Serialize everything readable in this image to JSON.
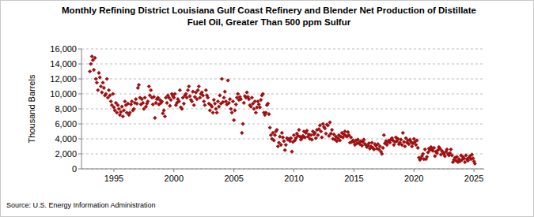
{
  "chart_data": {
    "type": "scatter",
    "title": "Monthly Refining District Louisiana Gulf Coast Refinery and Blender Net Production of Distillate\nFuel Oil, Greater Than 500 ppm Sulfur",
    "y_label": "Thousand Barrels",
    "source": "Source: U.S. Energy Information Administration",
    "color": "#a01010",
    "marker": "diamond",
    "grid": true,
    "xlim": [
      1992.3,
      2025.85
    ],
    "xticks": [
      1995,
      2000,
      2005,
      2010,
      2015,
      2020,
      2025
    ],
    "ylim": [
      0,
      16000
    ],
    "yticks": [
      0,
      {
        "value": 2000,
        "label": "2,000"
      },
      {
        "value": 4000,
        "label": "4,000"
      },
      {
        "value": 6000,
        "label": "6,000"
      },
      {
        "value": 8000,
        "label": "8,000"
      },
      {
        "value": 10000,
        "label": "10,000"
      },
      {
        "value": 12000,
        "label": "12,000"
      },
      {
        "value": 14000,
        "label": "14,000"
      },
      {
        "value": 16000,
        "label": "16,000"
      }
    ],
    "x": [
      1993,
      1993.08,
      1993.17,
      1993.25,
      1993.33,
      1993.42,
      1993.5,
      1993.58,
      1993.67,
      1993.75,
      1993.83,
      1993.92,
      1994,
      1994.08,
      1994.17,
      1994.25,
      1994.33,
      1994.42,
      1994.5,
      1994.58,
      1994.67,
      1994.75,
      1994.83,
      1994.92,
      1995,
      1995.08,
      1995.17,
      1995.25,
      1995.33,
      1995.42,
      1995.5,
      1995.58,
      1995.67,
      1995.75,
      1995.83,
      1995.92,
      1996,
      1996.08,
      1996.17,
      1996.25,
      1996.33,
      1996.42,
      1996.5,
      1996.58,
      1996.67,
      1996.75,
      1996.83,
      1996.92,
      1997,
      1997.08,
      1997.17,
      1997.25,
      1997.33,
      1997.42,
      1997.5,
      1997.58,
      1997.67,
      1997.75,
      1997.83,
      1997.92,
      1998,
      1998.08,
      1998.17,
      1998.25,
      1998.33,
      1998.42,
      1998.5,
      1998.58,
      1998.67,
      1998.75,
      1998.83,
      1998.92,
      1999,
      1999.08,
      1999.17,
      1999.25,
      1999.33,
      1999.42,
      1999.5,
      1999.58,
      1999.67,
      1999.75,
      1999.83,
      1999.92,
      2000,
      2000.08,
      2000.17,
      2000.25,
      2000.33,
      2000.42,
      2000.5,
      2000.58,
      2000.67,
      2000.75,
      2000.83,
      2000.92,
      2001,
      2001.08,
      2001.17,
      2001.25,
      2001.33,
      2001.42,
      2001.5,
      2001.58,
      2001.67,
      2001.75,
      2001.83,
      2001.92,
      2002,
      2002.08,
      2002.17,
      2002.25,
      2002.33,
      2002.42,
      2002.5,
      2002.58,
      2002.67,
      2002.75,
      2002.83,
      2002.92,
      2003,
      2003.08,
      2003.17,
      2003.25,
      2003.33,
      2003.42,
      2003.5,
      2003.58,
      2003.67,
      2003.75,
      2003.83,
      2003.92,
      2004,
      2004.08,
      2004.17,
      2004.25,
      2004.33,
      2004.42,
      2004.5,
      2004.58,
      2004.67,
      2004.75,
      2004.83,
      2004.92,
      2005,
      2005.08,
      2005.17,
      2005.25,
      2005.33,
      2005.42,
      2005.5,
      2005.58,
      2005.67,
      2005.75,
      2005.83,
      2005.92,
      2006,
      2006.08,
      2006.17,
      2006.25,
      2006.33,
      2006.42,
      2006.5,
      2006.58,
      2006.67,
      2006.75,
      2006.83,
      2006.92,
      2007,
      2007.08,
      2007.17,
      2007.25,
      2007.33,
      2007.42,
      2007.5,
      2007.58,
      2007.67,
      2007.75,
      2007.83,
      2007.92,
      2008,
      2008.08,
      2008.17,
      2008.25,
      2008.33,
      2008.42,
      2008.5,
      2008.58,
      2008.67,
      2008.75,
      2008.83,
      2008.92,
      2009,
      2009.08,
      2009.17,
      2009.25,
      2009.33,
      2009.42,
      2009.5,
      2009.58,
      2009.67,
      2009.75,
      2009.83,
      2009.92,
      2010,
      2010.08,
      2010.17,
      2010.25,
      2010.33,
      2010.42,
      2010.5,
      2010.58,
      2010.67,
      2010.75,
      2010.83,
      2010.92,
      2011,
      2011.08,
      2011.17,
      2011.25,
      2011.33,
      2011.42,
      2011.5,
      2011.58,
      2011.67,
      2011.75,
      2011.83,
      2011.92,
      2012,
      2012.08,
      2012.17,
      2012.25,
      2012.33,
      2012.42,
      2012.5,
      2012.58,
      2012.67,
      2012.75,
      2012.83,
      2012.92,
      2013,
      2013.08,
      2013.17,
      2013.25,
      2013.33,
      2013.42,
      2013.5,
      2013.58,
      2013.67,
      2013.75,
      2013.83,
      2013.92,
      2014,
      2014.08,
      2014.17,
      2014.25,
      2014.33,
      2014.42,
      2014.5,
      2014.58,
      2014.67,
      2014.75,
      2014.83,
      2014.92,
      2015,
      2015.08,
      2015.17,
      2015.25,
      2015.33,
      2015.42,
      2015.5,
      2015.58,
      2015.67,
      2015.75,
      2015.83,
      2015.92,
      2016,
      2016.08,
      2016.17,
      2016.25,
      2016.33,
      2016.42,
      2016.5,
      2016.58,
      2016.67,
      2016.75,
      2016.83,
      2016.92,
      2017,
      2017.08,
      2017.17,
      2017.25,
      2017.33,
      2017.42,
      2017.5,
      2017.58,
      2017.67,
      2017.75,
      2017.83,
      2017.92,
      2018,
      2018.08,
      2018.17,
      2018.25,
      2018.33,
      2018.42,
      2018.5,
      2018.58,
      2018.67,
      2018.75,
      2018.83,
      2018.92,
      2019,
      2019.08,
      2019.17,
      2019.25,
      2019.33,
      2019.42,
      2019.5,
      2019.58,
      2019.67,
      2019.75,
      2019.83,
      2019.92,
      2020,
      2020.08,
      2020.17,
      2020.25,
      2020.33,
      2020.42,
      2020.5,
      2020.58,
      2020.67,
      2020.75,
      2020.83,
      2020.92,
      2021,
      2021.08,
      2021.17,
      2021.25,
      2021.33,
      2021.42,
      2021.5,
      2021.58,
      2021.67,
      2021.75,
      2021.83,
      2021.92,
      2022,
      2022.08,
      2022.17,
      2022.25,
      2022.33,
      2022.42,
      2022.5,
      2022.58,
      2022.67,
      2022.75,
      2022.83,
      2022.92,
      2023,
      2023.08,
      2023.17,
      2023.25,
      2023.33,
      2023.42,
      2023.5,
      2023.58,
      2023.67,
      2023.75,
      2023.83,
      2023.92,
      2024,
      2024.08,
      2024.17,
      2024.25,
      2024.33,
      2024.42,
      2024.5,
      2024.58,
      2024.67,
      2024.75,
      2024.83,
      2024.92,
      2025,
      2025.08
    ],
    "values": [
      13000,
      14000,
      15000,
      14500,
      13200,
      14800,
      12000,
      11500,
      10500,
      12800,
      12200,
      11000,
      10200,
      11500,
      10800,
      9800,
      10000,
      12000,
      9500,
      10500,
      9800,
      9000,
      8500,
      10000,
      8200,
      7800,
      8800,
      7500,
      8500,
      8000,
      7200,
      7600,
      8300,
      7000,
      7800,
      9000,
      8500,
      7500,
      8700,
      7200,
      7500,
      8600,
      9000,
      7800,
      8000,
      8800,
      9300,
      8700,
      10800,
      11200,
      9500,
      8600,
      9300,
      8800,
      8000,
      9500,
      8300,
      8700,
      9000,
      11000,
      9800,
      10500,
      9500,
      8600,
      9600,
      6800,
      8800,
      9300,
      9500,
      8600,
      9200,
      8800,
      9000,
      7400,
      7800,
      7000,
      9500,
      8800,
      9800,
      9500,
      8400,
      9200,
      10000,
      9700,
      9500,
      10000,
      8500,
      8800,
      9300,
      9000,
      10500,
      8200,
      8000,
      9500,
      8700,
      9800,
      10000,
      9500,
      10500,
      11000,
      9700,
      9200,
      9000,
      10300,
      8500,
      9600,
      10200,
      9300,
      10500,
      11000,
      9500,
      10000,
      10200,
      9800,
      9000,
      8500,
      10500,
      9800,
      9500,
      8700,
      7800,
      8500,
      8300,
      7500,
      9200,
      8700,
      8000,
      7500,
      9000,
      8300,
      9800,
      8700,
      12000,
      8900,
      9500,
      10300,
      9000,
      8600,
      11800,
      8800,
      9300,
      8000,
      7500,
      9000,
      6500,
      7800,
      8600,
      9500,
      10000,
      9200,
      9600,
      9300,
      4800,
      6000,
      8800,
      9700,
      9500,
      10200,
      9600,
      9300,
      8500,
      8300,
      9500,
      8700,
      8000,
      9000,
      7500,
      8200,
      9000,
      8600,
      8200,
      9200,
      9800,
      10000,
      7500,
      7200,
      7500,
      8500,
      8700,
      7300,
      5500,
      4500,
      4000,
      4800,
      3800,
      4500,
      5000,
      5200,
      3000,
      3500,
      4300,
      3200,
      4800,
      4200,
      3700,
      2500,
      3200,
      4100,
      3900,
      4000,
      3700,
      4100,
      2300,
      3600,
      4500,
      3800,
      4100,
      4700,
      4400,
      5200,
      4300,
      3900,
      4100,
      4400,
      5000,
      4200,
      4800,
      5100,
      4300,
      4600,
      4000,
      4500,
      3900,
      5000,
      4600,
      4800,
      4100,
      5200,
      4500,
      5300,
      5800,
      5000,
      4200,
      6000,
      5600,
      5400,
      4700,
      5900,
      5800,
      4400,
      6200,
      4700,
      5200,
      4000,
      4600,
      3900,
      4300,
      3700,
      4100,
      4500,
      3800,
      4300,
      4800,
      4200,
      4600,
      5000,
      4400,
      4300,
      4900,
      4500,
      3500,
      4200,
      3600,
      3800,
      3600,
      3200,
      3800,
      3400,
      3900,
      3500,
      3300,
      3700,
      3100,
      3600,
      3900,
      3300,
      3200,
      2900,
      3100,
      3400,
      2700,
      3000,
      3500,
      2800,
      2600,
      3300,
      3100,
      2700,
      3300,
      2600,
      3000,
      2300,
      2000,
      2800,
      4500,
      3400,
      3700,
      3200,
      3600,
      3800,
      3500,
      3900,
      4100,
      3800,
      3200,
      3600,
      4200,
      3700,
      4000,
      3300,
      3500,
      3900,
      3200,
      4800,
      3600,
      3000,
      4100,
      3500,
      3800,
      3300,
      3900,
      3600,
      3000,
      3400,
      4000,
      3600,
      3200,
      3800,
      2800,
      1500,
      1200,
      1400,
      1700,
      2000,
      1300,
      2600,
      1300,
      1600,
      2200,
      2700,
      2500,
      2900,
      2600,
      2400,
      2800,
      1700,
      2300,
      2100,
      2500,
      2900,
      2700,
      1900,
      2400,
      2200,
      2000,
      1700,
      2300,
      2600,
      2000,
      1800,
      2100,
      2600,
      1800,
      900,
      1200,
      1500,
      1100,
      1600,
      900,
      1300,
      1000,
      1800,
      1200,
      1600,
      1400,
      900,
      1800,
      1300,
      1100,
      1500,
      1700,
      1300,
      1900,
      1400,
      1000,
      700
    ]
  }
}
